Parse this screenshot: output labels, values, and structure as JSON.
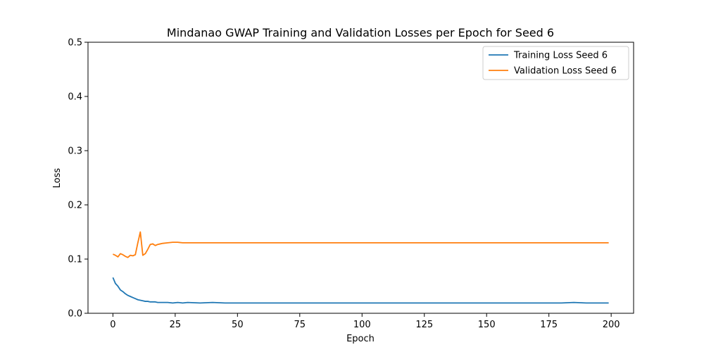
{
  "chart_data": {
    "type": "line",
    "title": "Mindanao GWAP Training and Validation Losses per Epoch for Seed 6",
    "xlabel": "Epoch",
    "ylabel": "Loss",
    "xlim": [
      -10,
      209
    ],
    "ylim": [
      0,
      0.5
    ],
    "xticks": [
      0,
      25,
      50,
      75,
      100,
      125,
      150,
      175,
      200
    ],
    "yticks": [
      0.0,
      0.1,
      0.2,
      0.3,
      0.4,
      0.5
    ],
    "xtick_labels": [
      "0",
      "25",
      "50",
      "75",
      "100",
      "125",
      "150",
      "175",
      "200"
    ],
    "ytick_labels": [
      "0.0",
      "0.1",
      "0.2",
      "0.3",
      "0.4",
      "0.5"
    ],
    "grid": false,
    "legend_position": "top-right",
    "series": [
      {
        "name": "Training Loss Seed 6",
        "color": "#1f77b4",
        "x": [
          0,
          1,
          2,
          3,
          4,
          5,
          6,
          7,
          8,
          9,
          10,
          11,
          12,
          13,
          14,
          15,
          16,
          17,
          18,
          19,
          20,
          22,
          24,
          26,
          28,
          30,
          35,
          40,
          45,
          50,
          60,
          70,
          80,
          90,
          100,
          110,
          120,
          130,
          140,
          150,
          160,
          170,
          180,
          185,
          190,
          195,
          199
        ],
        "y": [
          0.066,
          0.055,
          0.05,
          0.043,
          0.04,
          0.036,
          0.033,
          0.031,
          0.029,
          0.027,
          0.025,
          0.024,
          0.023,
          0.022,
          0.022,
          0.021,
          0.021,
          0.021,
          0.02,
          0.02,
          0.02,
          0.02,
          0.019,
          0.02,
          0.019,
          0.02,
          0.019,
          0.02,
          0.019,
          0.019,
          0.019,
          0.019,
          0.019,
          0.019,
          0.019,
          0.019,
          0.019,
          0.019,
          0.019,
          0.019,
          0.019,
          0.019,
          0.019,
          0.02,
          0.019,
          0.019,
          0.019
        ]
      },
      {
        "name": "Validation Loss Seed 6",
        "color": "#ff7f0e",
        "x": [
          0,
          1,
          2,
          3,
          4,
          5,
          6,
          7,
          8,
          9,
          10,
          11,
          12,
          13,
          14,
          15,
          16,
          17,
          18,
          19,
          20,
          22,
          24,
          26,
          28,
          30,
          40,
          50,
          75,
          100,
          125,
          150,
          175,
          199
        ],
        "y": [
          0.109,
          0.107,
          0.104,
          0.11,
          0.108,
          0.105,
          0.103,
          0.107,
          0.106,
          0.108,
          0.13,
          0.15,
          0.107,
          0.11,
          0.118,
          0.127,
          0.128,
          0.125,
          0.127,
          0.128,
          0.129,
          0.13,
          0.131,
          0.131,
          0.13,
          0.13,
          0.13,
          0.13,
          0.13,
          0.13,
          0.13,
          0.13,
          0.13,
          0.13
        ]
      }
    ]
  }
}
